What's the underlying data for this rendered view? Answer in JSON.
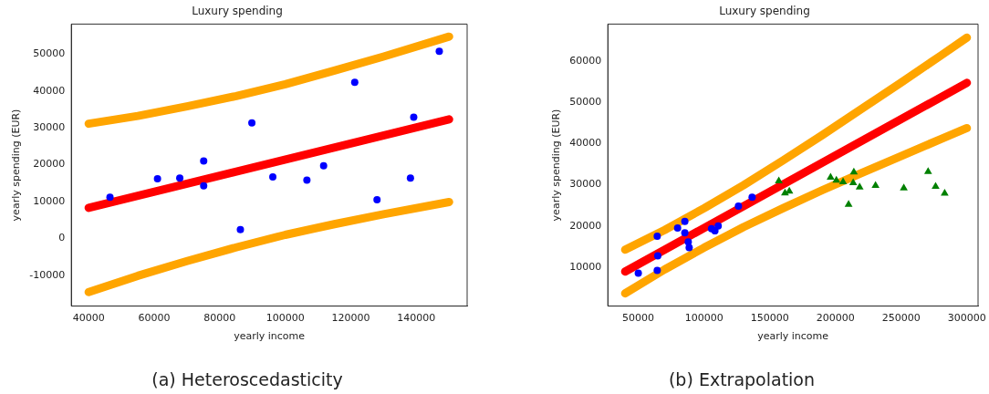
{
  "chart_data": [
    {
      "type": "scatter",
      "title": "Luxury spending",
      "xlabel": "yearly income",
      "ylabel": "yearly spending (EUR)",
      "annotations": [
        "(a) Heteroscedasticity"
      ],
      "xlim": [
        34700,
        155500
      ],
      "ylim": [
        -18300,
        58100
      ],
      "xticks": [
        40000,
        60000,
        80000,
        100000,
        120000,
        140000
      ],
      "yticks": [
        -10000,
        0,
        10000,
        20000,
        30000,
        40000,
        50000
      ],
      "grid": false,
      "legend": false,
      "series": [
        {
          "type": "scatter",
          "marker": "circle",
          "color": "#0000ff",
          "x": [
            46500,
            61000,
            67800,
            75100,
            75100,
            86300,
            89800,
            96200,
            106600,
            111700,
            121200,
            128000,
            138200,
            139200,
            147000
          ],
          "values": [
            11200,
            16200,
            16400,
            21000,
            14300,
            2400,
            31300,
            16700,
            15800,
            19700,
            42300,
            10500,
            16400,
            32900,
            50700
          ]
        },
        {
          "type": "line",
          "marker": "none",
          "line_style": "solid",
          "color": "#ffa500",
          "x": [
            40000,
            55000,
            70000,
            85000,
            100000,
            115000,
            130000,
            150000
          ],
          "values": [
            31100,
            33200,
            35800,
            38600,
            41800,
            45500,
            49300,
            54700
          ]
        },
        {
          "type": "line",
          "marker": "none",
          "line_style": "solid",
          "color": "#ffa500",
          "x": [
            40000,
            55000,
            70000,
            85000,
            100000,
            115000,
            130000,
            150000
          ],
          "values": [
            -14500,
            -10100,
            -6100,
            -2400,
            1000,
            3900,
            6600,
            9900
          ]
        },
        {
          "type": "line",
          "marker": "none",
          "line_style": "solid",
          "color": "#ff0000",
          "x": [
            40000,
            150000
          ],
          "values": [
            8300,
            32300
          ]
        }
      ]
    },
    {
      "type": "scatter",
      "title": "Luxury spending",
      "xlabel": "yearly income",
      "ylabel": "yearly spending (EUR)",
      "annotations": [
        "(b) Extrapolation"
      ],
      "xlim": [
        26800,
        308500
      ],
      "ylim": [
        500,
        69100
      ],
      "xticks": [
        50000,
        100000,
        150000,
        200000,
        250000,
        300000
      ],
      "yticks": [
        10000,
        20000,
        30000,
        40000,
        50000,
        60000
      ],
      "grid": false,
      "legend": false,
      "series": [
        {
          "type": "scatter",
          "marker": "circle",
          "color": "#0000ff",
          "x": [
            50000,
            64400,
            64800,
            64400,
            79900,
            85400,
            85400,
            88000,
            88700,
            105700,
            108300,
            110800,
            126200,
            136600
          ],
          "values": [
            8500,
            9200,
            12700,
            17500,
            19500,
            21100,
            18300,
            16100,
            14700,
            19300,
            18800,
            20000,
            24800,
            27000
          ]
        },
        {
          "type": "scatter",
          "marker": "triangle",
          "color": "#008000",
          "x": [
            156900,
            161600,
            164900,
            196300,
            200700,
            205800,
            210000,
            214000,
            213500,
            218400,
            230500,
            252000,
            270500,
            276200,
            283100
          ],
          "values": [
            30900,
            28000,
            28400,
            31800,
            31100,
            30700,
            25200,
            33100,
            30500,
            29400,
            29800,
            29200,
            33200,
            29600,
            27900
          ]
        },
        {
          "type": "line",
          "marker": "none",
          "line_style": "solid",
          "color": "#ffa500",
          "x": [
            40000,
            70000,
            100000,
            130000,
            160000,
            190000,
            220000,
            250000,
            280000,
            300000
          ],
          "values": [
            14200,
            19000,
            24300,
            29900,
            35900,
            42100,
            48500,
            54900,
            61400,
            65800
          ]
        },
        {
          "type": "line",
          "marker": "none",
          "line_style": "solid",
          "color": "#ffa500",
          "x": [
            40000,
            70000,
            100000,
            130000,
            160000,
            190000,
            220000,
            250000,
            280000,
            300000
          ],
          "values": [
            3600,
            9400,
            14700,
            19700,
            24300,
            28700,
            32900,
            37000,
            41100,
            43800
          ]
        },
        {
          "type": "line",
          "marker": "none",
          "line_style": "solid",
          "color": "#ff0000",
          "x": [
            40000,
            300000
          ],
          "values": [
            8900,
            54800
          ]
        }
      ]
    }
  ]
}
